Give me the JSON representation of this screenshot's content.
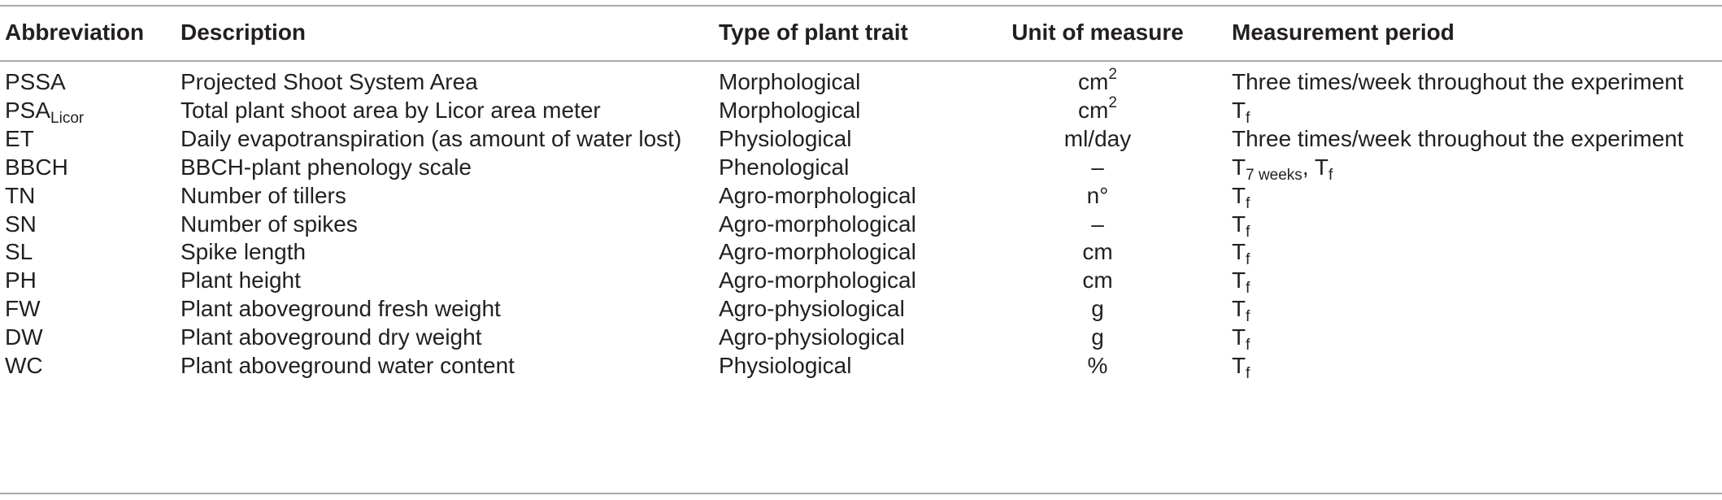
{
  "table": {
    "headers": {
      "abbreviation": "Abbreviation",
      "description": "Description",
      "type": "Type of plant trait",
      "unit": "Unit of measure",
      "period": "Measurement period"
    },
    "rows": [
      {
        "abbr_main": "PSSA",
        "abbr_sub": "",
        "description": "Projected Shoot System Area",
        "type": "Morphological",
        "unit_main": "cm",
        "unit_sup": "2",
        "period_main": "Three times/week throughout the experiment",
        "period_sub": "",
        "period_tail": "",
        "period_tail_sub": ""
      },
      {
        "abbr_main": "PSA",
        "abbr_sub": "Licor",
        "description": "Total plant shoot area by Licor area meter",
        "type": "Morphological",
        "unit_main": "cm",
        "unit_sup": "2",
        "period_main": "T",
        "period_sub": "f",
        "period_tail": "",
        "period_tail_sub": ""
      },
      {
        "abbr_main": "ET",
        "abbr_sub": "",
        "description": "Daily evapotranspiration (as amount of water lost)",
        "type": "Physiological",
        "unit_main": "ml/day",
        "unit_sup": "",
        "period_main": "Three times/week throughout the experiment",
        "period_sub": "",
        "period_tail": "",
        "period_tail_sub": ""
      },
      {
        "abbr_main": "BBCH",
        "abbr_sub": "",
        "description": "BBCH-plant phenology scale",
        "type": "Phenological",
        "unit_main": "–",
        "unit_sup": "",
        "period_main": "T",
        "period_sub": "7 weeks",
        "period_tail": ", T",
        "period_tail_sub": "f"
      },
      {
        "abbr_main": "TN",
        "abbr_sub": "",
        "description": "Number of tillers",
        "type": "Agro-morphological",
        "unit_main": "n°",
        "unit_sup": "",
        "period_main": "T",
        "period_sub": "f",
        "period_tail": "",
        "period_tail_sub": ""
      },
      {
        "abbr_main": "SN",
        "abbr_sub": "",
        "description": "Number of spikes",
        "type": "Agro-morphological",
        "unit_main": "–",
        "unit_sup": "",
        "period_main": "T",
        "period_sub": "f",
        "period_tail": "",
        "period_tail_sub": ""
      },
      {
        "abbr_main": "SL",
        "abbr_sub": "",
        "description": "Spike length",
        "type": "Agro-morphological",
        "unit_main": "cm",
        "unit_sup": "",
        "period_main": "T",
        "period_sub": "f",
        "period_tail": "",
        "period_tail_sub": ""
      },
      {
        "abbr_main": "PH",
        "abbr_sub": "",
        "description": "Plant height",
        "type": "Agro-morphological",
        "unit_main": "cm",
        "unit_sup": "",
        "period_main": "T",
        "period_sub": "f",
        "period_tail": "",
        "period_tail_sub": ""
      },
      {
        "abbr_main": "FW",
        "abbr_sub": "",
        "description": "Plant aboveground fresh weight",
        "type": "Agro-physiological",
        "unit_main": "g",
        "unit_sup": "",
        "period_main": "T",
        "period_sub": "f",
        "period_tail": "",
        "period_tail_sub": ""
      },
      {
        "abbr_main": "DW",
        "abbr_sub": "",
        "description": "Plant aboveground dry weight",
        "type": "Agro-physiological",
        "unit_main": "g",
        "unit_sup": "",
        "period_main": "T",
        "period_sub": "f",
        "period_tail": "",
        "period_tail_sub": ""
      },
      {
        "abbr_main": "WC",
        "abbr_sub": "",
        "description": "Plant aboveground water content",
        "type": "Physiological",
        "unit_main": "%",
        "unit_sup": "",
        "period_main": "T",
        "period_sub": "f",
        "period_tail": "",
        "period_tail_sub": ""
      }
    ]
  }
}
